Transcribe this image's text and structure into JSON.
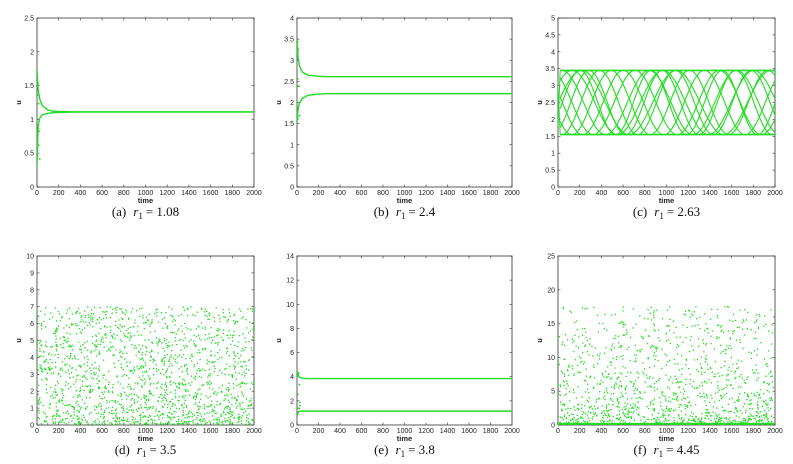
{
  "colors": {
    "series": "#22dd22",
    "axis": "#333333"
  },
  "chart_data": [
    {
      "type": "line",
      "caption_label": "(a)",
      "caption_var": "r",
      "caption_sub": "1",
      "caption_value": "= 1.08",
      "xlabel": "time",
      "ylabel": "u",
      "xlim": [
        0,
        2000
      ],
      "ylim": [
        0,
        2.5
      ],
      "xticks": [
        0,
        200,
        400,
        600,
        800,
        1000,
        1200,
        1400,
        1600,
        1800,
        2000
      ],
      "yticks": [
        0,
        0.5,
        1,
        1.5,
        2,
        2.5
      ],
      "ytick_labels": [
        "0",
        "0.5",
        "1",
        "1.5",
        "2",
        "2.5"
      ],
      "behavior": "converge-2",
      "series": [
        {
          "x": [
            0,
            10,
            25,
            50,
            100,
            150,
            250,
            400,
            2000
          ],
          "y": [
            1.75,
            1.45,
            1.3,
            1.2,
            1.14,
            1.12,
            1.115,
            1.11,
            1.11
          ]
        },
        {
          "x": [
            0,
            10,
            25,
            50,
            100,
            150,
            250,
            400,
            2000
          ],
          "y": [
            0.3,
            0.9,
            1.02,
            1.07,
            1.09,
            1.1,
            1.105,
            1.11,
            1.11
          ]
        }
      ]
    },
    {
      "type": "line",
      "caption_label": "(b)",
      "caption_var": "r",
      "caption_sub": "1",
      "caption_value": "= 2.4",
      "xlabel": "time",
      "ylabel": "u",
      "xlim": [
        0,
        2000
      ],
      "ylim": [
        0,
        4
      ],
      "xticks": [
        0,
        200,
        400,
        600,
        800,
        1000,
        1200,
        1400,
        1600,
        1800,
        2000
      ],
      "yticks": [
        0,
        0.5,
        1,
        1.5,
        2,
        2.5,
        3,
        3.5,
        4
      ],
      "ytick_labels": [
        "0",
        "0.5",
        "1",
        "1.5",
        "2",
        "2.5",
        "3",
        "3.5",
        "4"
      ],
      "behavior": "converge-2",
      "series": [
        {
          "x": [
            0,
            10,
            25,
            50,
            100,
            200,
            300,
            2000
          ],
          "y": [
            3.5,
            3.05,
            2.85,
            2.72,
            2.65,
            2.62,
            2.61,
            2.61
          ]
        },
        {
          "x": [
            0,
            10,
            25,
            50,
            100,
            200,
            300,
            2000
          ],
          "y": [
            1.5,
            1.85,
            2.0,
            2.1,
            2.17,
            2.2,
            2.21,
            2.21
          ]
        }
      ]
    },
    {
      "type": "line",
      "caption_label": "(c)",
      "caption_var": "r",
      "caption_sub": "1",
      "caption_value": "= 2.63",
      "xlabel": "time",
      "ylabel": "u",
      "xlim": [
        0,
        2000
      ],
      "ylim": [
        0,
        5
      ],
      "xticks": [
        0,
        200,
        400,
        600,
        800,
        1000,
        1200,
        1400,
        1600,
        1800,
        2000
      ],
      "yticks": [
        0,
        0.5,
        1,
        1.5,
        2,
        2.5,
        3,
        3.5,
        4,
        4.5,
        5
      ],
      "ytick_labels": [
        "0",
        "0.5",
        "1",
        "1.5",
        "2",
        "2.5",
        "3",
        "3.5",
        "4",
        "4.5",
        "5"
      ],
      "behavior": "quasiperiodic",
      "band": [
        1.55,
        3.45
      ]
    },
    {
      "type": "scatter",
      "caption_label": "(d)",
      "caption_var": "r",
      "caption_sub": "1",
      "caption_value": "= 3.5",
      "xlabel": "time",
      "ylabel": "u",
      "xlim": [
        0,
        2000
      ],
      "ylim": [
        0,
        10
      ],
      "xticks": [
        0,
        200,
        400,
        600,
        800,
        1000,
        1200,
        1400,
        1600,
        1800,
        2000
      ],
      "yticks": [
        0,
        1,
        2,
        3,
        4,
        5,
        6,
        7,
        8,
        9,
        10
      ],
      "ytick_labels": [
        "0",
        "1",
        "2",
        "3",
        "4",
        "5",
        "6",
        "7",
        "8",
        "9",
        "10"
      ],
      "behavior": "chaos",
      "range": [
        0.05,
        7.0
      ]
    },
    {
      "type": "line",
      "caption_label": "(e)",
      "caption_var": "r",
      "caption_sub": "1",
      "caption_value": "= 3.8",
      "xlabel": "time",
      "ylabel": "u",
      "xlim": [
        0,
        2000
      ],
      "ylim": [
        0,
        14
      ],
      "xticks": [
        0,
        200,
        400,
        600,
        800,
        1000,
        1200,
        1400,
        1600,
        1800,
        2000
      ],
      "yticks": [
        0,
        2,
        4,
        6,
        8,
        10,
        12,
        14
      ],
      "ytick_labels": [
        "0",
        "2",
        "4",
        "6",
        "8",
        "10",
        "12",
        "14"
      ],
      "behavior": "converge-2",
      "series": [
        {
          "x": [
            0,
            15,
            40,
            80,
            2000
          ],
          "y": [
            4.5,
            4.0,
            3.9,
            3.85,
            3.85
          ]
        },
        {
          "x": [
            0,
            15,
            40,
            80,
            2000
          ],
          "y": [
            0.8,
            1.1,
            1.15,
            1.15,
            1.15
          ]
        }
      ]
    },
    {
      "type": "scatter",
      "caption_label": "(f)",
      "caption_var": "r",
      "caption_sub": "1",
      "caption_value": "= 4.45",
      "xlabel": "time",
      "ylabel": "u",
      "xlim": [
        0,
        2000
      ],
      "ylim": [
        0,
        25
      ],
      "xticks": [
        0,
        200,
        400,
        600,
        800,
        1000,
        1200,
        1400,
        1600,
        1800,
        2000
      ],
      "yticks": [
        0,
        5,
        10,
        15,
        20,
        25
      ],
      "ytick_labels": [
        "0",
        "5",
        "10",
        "15",
        "20",
        "25"
      ],
      "behavior": "chaos-heavy",
      "range": [
        0.0,
        17.5
      ]
    }
  ]
}
